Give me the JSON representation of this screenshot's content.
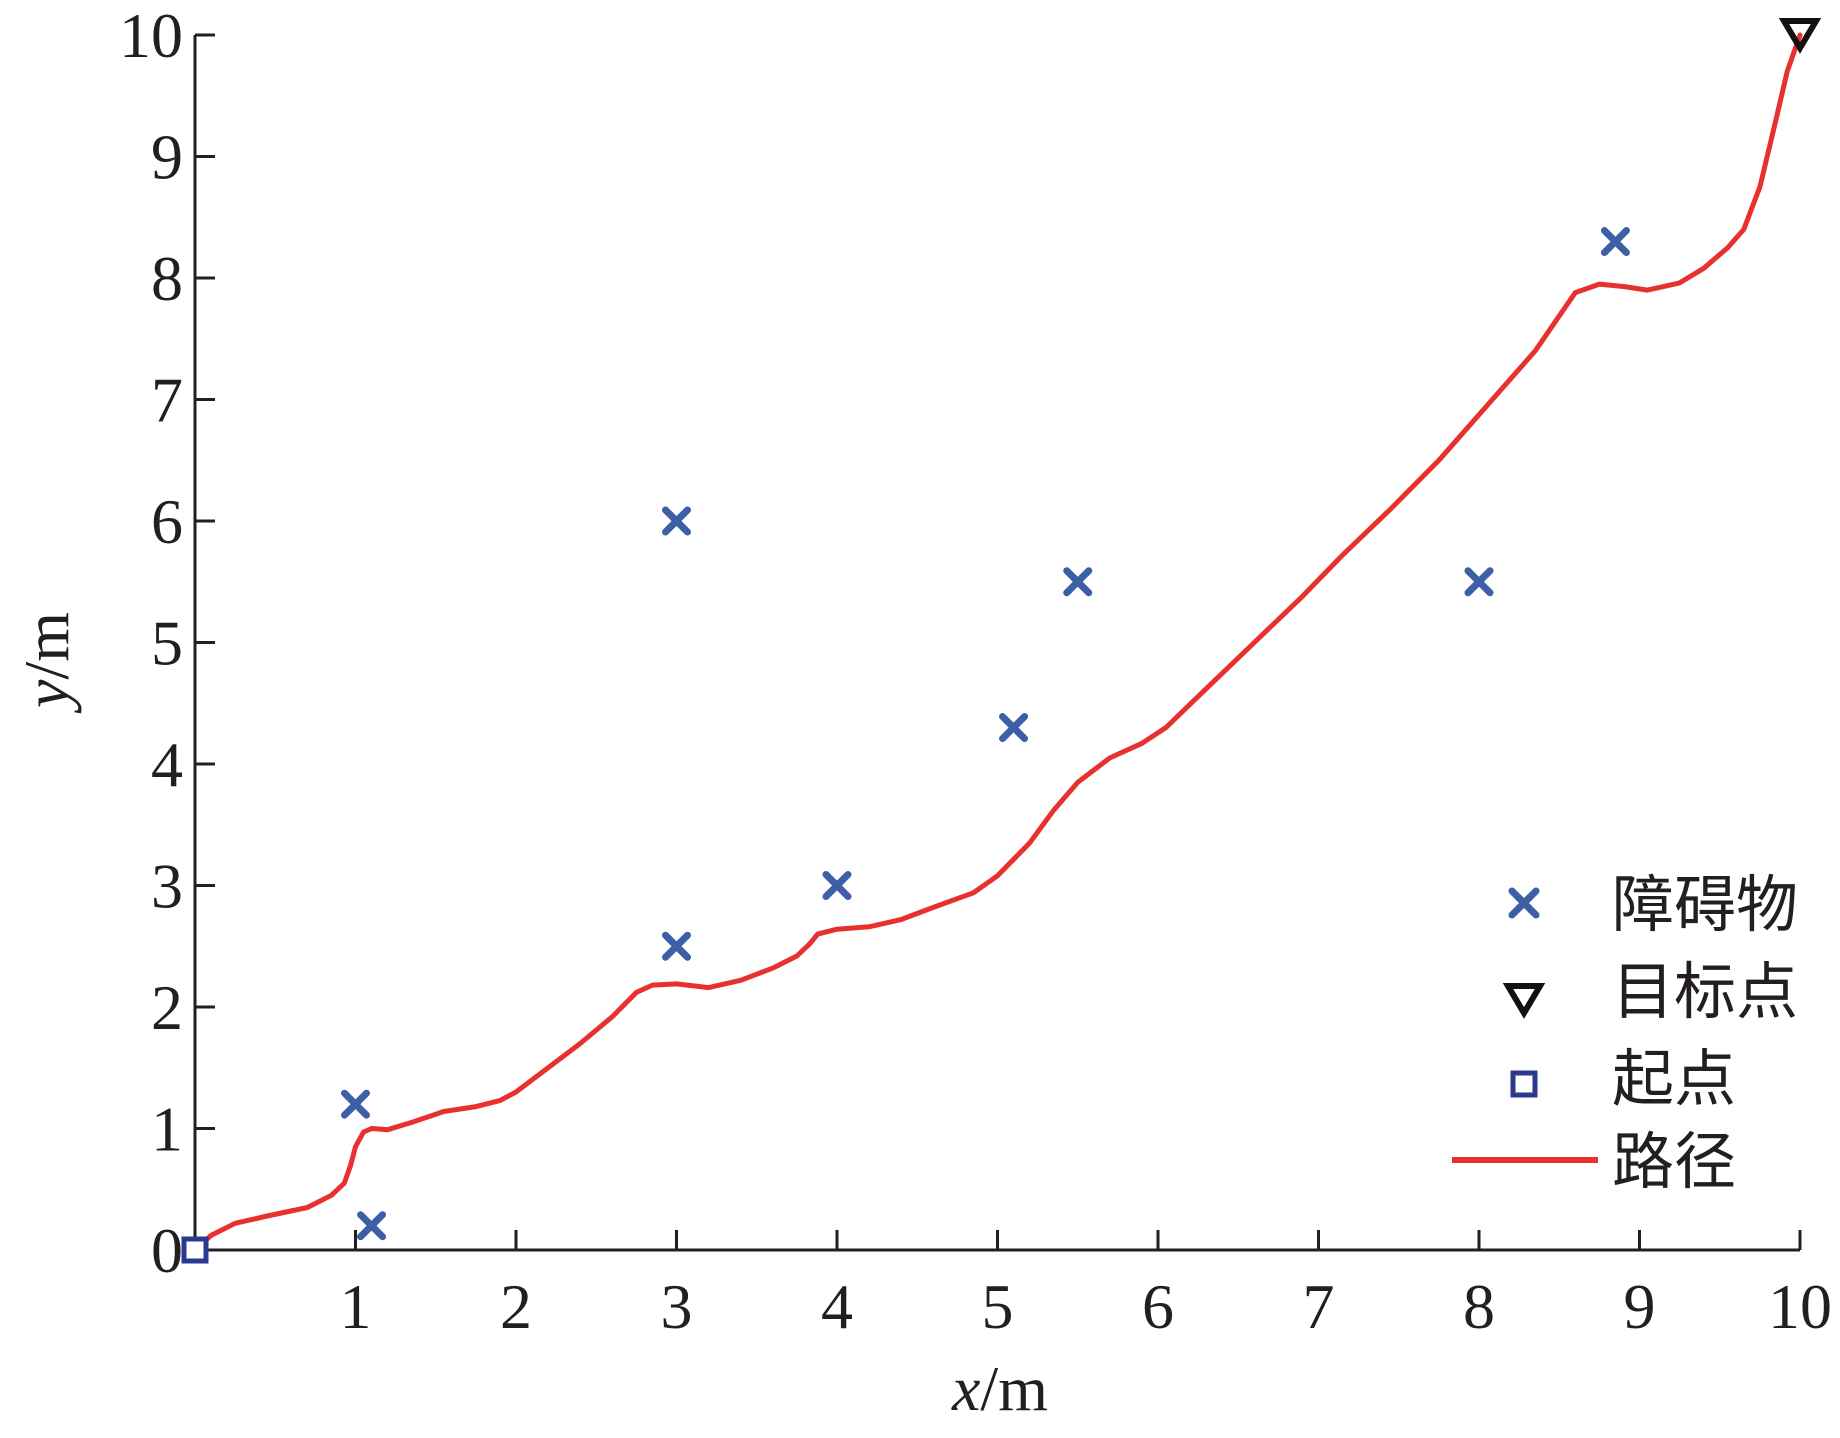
{
  "chart_data": {
    "type": "scatter",
    "xlabel": {
      "var": "x",
      "unit": "/m"
    },
    "ylabel": {
      "var": "y",
      "unit": "/m"
    },
    "xlim": [
      0,
      10
    ],
    "ylim": [
      0,
      10
    ],
    "xticks": [
      "1",
      "2",
      "3",
      "4",
      "5",
      "6",
      "7",
      "8",
      "9",
      "10"
    ],
    "yticks": [
      "0",
      "1",
      "2",
      "3",
      "4",
      "5",
      "6",
      "7",
      "8",
      "9",
      "10"
    ],
    "grid": false,
    "legend_position": "bottom-right",
    "colors": {
      "obstacle": "#3c5fa5",
      "path": "#e8312f",
      "start": "#2b3a8f",
      "goal": "#111111",
      "axis": "#231f20"
    },
    "series": [
      {
        "name": "障碍物",
        "kind": "obstacles",
        "marker": "x",
        "points": [
          [
            1.0,
            1.2
          ],
          [
            1.1,
            0.2
          ],
          [
            3.0,
            2.5
          ],
          [
            3.0,
            6.0
          ],
          [
            4.0,
            3.0
          ],
          [
            5.1,
            4.3
          ],
          [
            5.5,
            5.5
          ],
          [
            8.0,
            5.5
          ],
          [
            8.85,
            8.3
          ]
        ]
      },
      {
        "name": "目标点",
        "kind": "goal",
        "marker": "triangle-down",
        "points": [
          [
            10.0,
            10.0
          ]
        ]
      },
      {
        "name": "起点",
        "kind": "start",
        "marker": "square",
        "points": [
          [
            0.0,
            0.0
          ]
        ]
      },
      {
        "name": "路径",
        "kind": "path",
        "marker": "line",
        "points": [
          [
            0,
            0
          ],
          [
            0.1,
            0.12
          ],
          [
            0.25,
            0.22
          ],
          [
            0.45,
            0.28
          ],
          [
            0.7,
            0.35
          ],
          [
            0.85,
            0.45
          ],
          [
            0.93,
            0.55
          ],
          [
            0.97,
            0.7
          ],
          [
            1.0,
            0.85
          ],
          [
            1.05,
            0.97
          ],
          [
            1.1,
            1.0
          ],
          [
            1.2,
            0.99
          ],
          [
            1.35,
            1.05
          ],
          [
            1.55,
            1.14
          ],
          [
            1.75,
            1.18
          ],
          [
            1.9,
            1.23
          ],
          [
            2.0,
            1.3
          ],
          [
            2.2,
            1.5
          ],
          [
            2.4,
            1.7
          ],
          [
            2.6,
            1.92
          ],
          [
            2.75,
            2.12
          ],
          [
            2.85,
            2.18
          ],
          [
            3.0,
            2.19
          ],
          [
            3.2,
            2.16
          ],
          [
            3.4,
            2.22
          ],
          [
            3.6,
            2.32
          ],
          [
            3.75,
            2.42
          ],
          [
            3.83,
            2.52
          ],
          [
            3.88,
            2.6
          ],
          [
            4.0,
            2.64
          ],
          [
            4.2,
            2.66
          ],
          [
            4.4,
            2.72
          ],
          [
            4.6,
            2.82
          ],
          [
            4.85,
            2.94
          ],
          [
            5.0,
            3.08
          ],
          [
            5.2,
            3.35
          ],
          [
            5.35,
            3.62
          ],
          [
            5.5,
            3.85
          ],
          [
            5.7,
            4.05
          ],
          [
            5.9,
            4.17
          ],
          [
            6.05,
            4.3
          ],
          [
            6.3,
            4.62
          ],
          [
            6.6,
            5.0
          ],
          [
            6.9,
            5.38
          ],
          [
            7.15,
            5.72
          ],
          [
            7.45,
            6.1
          ],
          [
            7.75,
            6.5
          ],
          [
            8.05,
            6.95
          ],
          [
            8.35,
            7.4
          ],
          [
            8.6,
            7.88
          ],
          [
            8.75,
            7.95
          ],
          [
            8.9,
            7.93
          ],
          [
            9.05,
            7.9
          ],
          [
            9.25,
            7.96
          ],
          [
            9.4,
            8.08
          ],
          [
            9.55,
            8.25
          ],
          [
            9.65,
            8.4
          ],
          [
            9.75,
            8.75
          ],
          [
            9.85,
            9.3
          ],
          [
            9.92,
            9.7
          ],
          [
            10.0,
            10.0
          ]
        ]
      }
    ]
  }
}
